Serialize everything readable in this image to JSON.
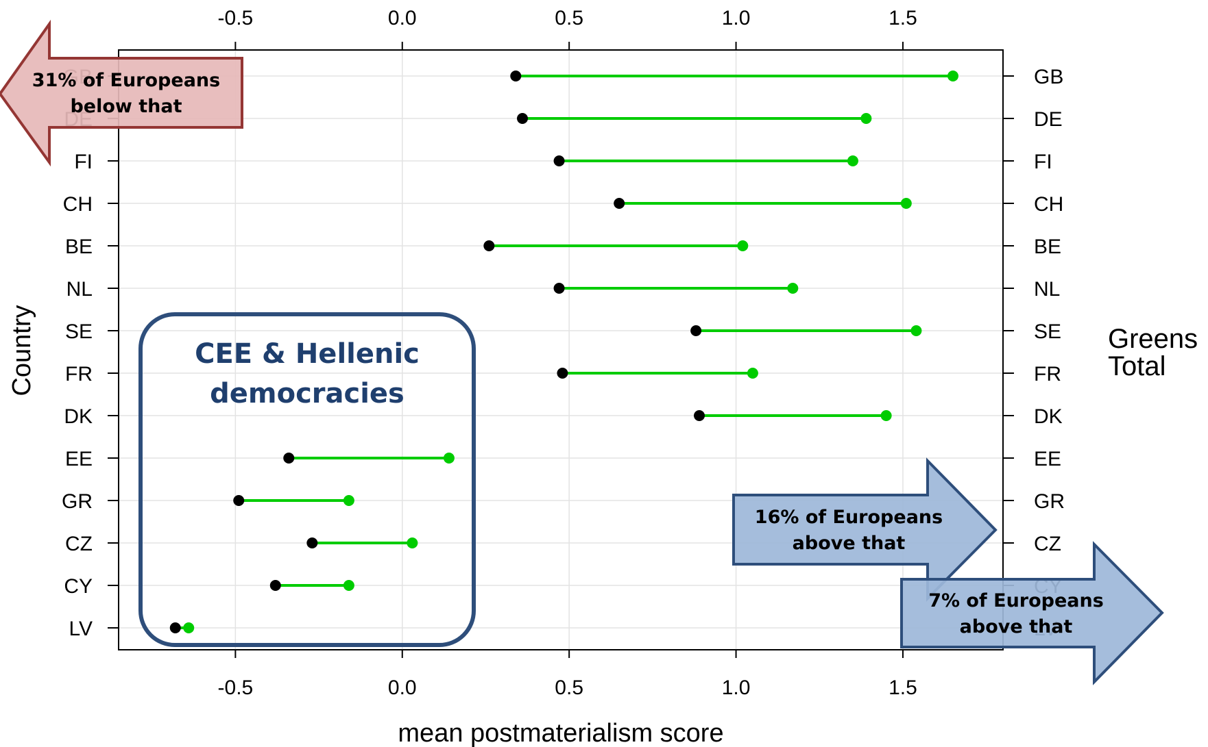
{
  "chart_data": {
    "type": "dot",
    "xlabel": "mean postmaterialism score",
    "ylabel": "Country",
    "xlim": [
      -0.85,
      1.8
    ],
    "x_ticks": [
      -0.5,
      0.0,
      0.5,
      1.0,
      1.5
    ],
    "x_tick_labels": [
      "-0.5",
      "0.0",
      "0.5",
      "1.0",
      "1.5"
    ],
    "categories": [
      "GB",
      "DE",
      "FI",
      "CH",
      "BE",
      "NL",
      "SE",
      "FR",
      "DK",
      "EE",
      "GR",
      "CZ",
      "CY",
      "LV"
    ],
    "series": [
      {
        "name": "Total",
        "color": "#000000",
        "values": [
          0.34,
          0.36,
          0.47,
          0.65,
          0.26,
          0.47,
          0.88,
          0.48,
          0.89,
          -0.34,
          -0.49,
          -0.27,
          -0.38,
          -0.68
        ]
      },
      {
        "name": "Greens",
        "color": "#00CC00",
        "values": [
          1.65,
          1.39,
          1.35,
          1.51,
          1.02,
          1.17,
          1.54,
          1.05,
          1.45,
          0.14,
          -0.16,
          0.03,
          -0.16,
          -0.64
        ]
      }
    ],
    "legend_entries": [
      "Greens",
      "Total"
    ],
    "legend_position": "right",
    "grid": true
  },
  "annotations": {
    "left_arrow": {
      "line1": "31% of Europeans",
      "line2": "below that",
      "fill": "#E6B9B8",
      "stroke": "#943634"
    },
    "right_arrow_1": {
      "line1": "16% of Europeans",
      "line2": "above that",
      "fill": "#9DB7D9",
      "stroke": "#2E4E7B"
    },
    "right_arrow_2": {
      "line1": "7% of Europeans",
      "line2": "above that",
      "fill": "#9DB7D9",
      "stroke": "#2E4E7B"
    },
    "cee_box": {
      "line1": "CEE & Hellenic",
      "line2": "democracies",
      "stroke": "#2E4E7B"
    }
  }
}
